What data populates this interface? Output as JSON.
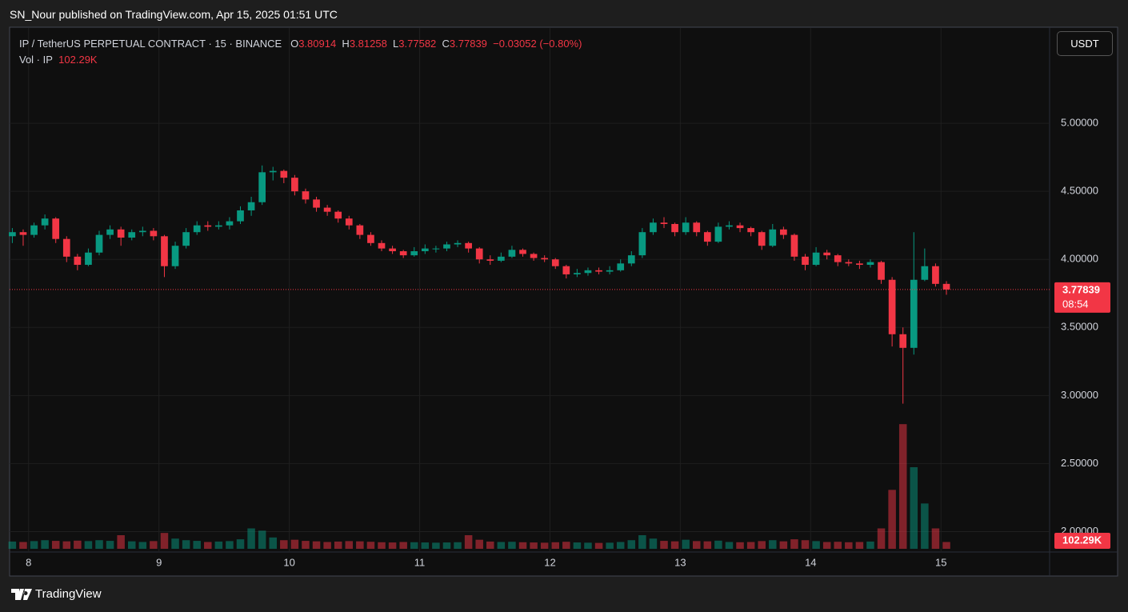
{
  "header": {
    "publisher": "SN_Nour published on TradingView.com, Apr 15, 2025 01:51 UTC",
    "brand": "TradingView"
  },
  "chart_data": {
    "type": "candlestick",
    "legend": {
      "symbol": "IP / TetherUS PERPETUAL CONTRACT · 15 · BINANCE",
      "open_label": "O",
      "open": 3.80914,
      "high_label": "H",
      "high": 3.81258,
      "low_label": "L",
      "low": 3.77582,
      "close_label": "C",
      "close": 3.77839,
      "change": "−0.03052 (−0.80%)",
      "volume_name": "Vol · IP",
      "volume": "102.29K"
    },
    "currency": "USDT",
    "countdown": "08:54",
    "up_color": "#089981",
    "down_color": "#f23645",
    "xlim": [
      -3.5,
      188
    ],
    "xticks": [
      {
        "value": 0,
        "label": "8"
      },
      {
        "value": 24,
        "label": "9"
      },
      {
        "value": 48,
        "label": "10"
      },
      {
        "value": 72,
        "label": "11"
      },
      {
        "value": 96,
        "label": "12"
      },
      {
        "value": 120,
        "label": "13"
      },
      {
        "value": 144,
        "label": "14"
      },
      {
        "value": 168,
        "label": "15"
      }
    ],
    "ylim": [
      1.85,
      5.7
    ],
    "yticks": [
      {
        "value": 2,
        "label": "2.00000"
      },
      {
        "value": 2.5,
        "label": "2.50000"
      },
      {
        "value": 3,
        "label": "3.00000"
      },
      {
        "value": 3.5,
        "label": "3.50000"
      },
      {
        "value": 4,
        "label": "4.00000"
      },
      {
        "value": 4.5,
        "label": "4.50000"
      },
      {
        "value": 5,
        "label": "5.00000"
      }
    ],
    "vlim": [
      0,
      6000000
    ],
    "grid": true,
    "x": [
      -3,
      -1,
      1,
      3,
      5,
      7,
      9,
      11,
      13,
      15,
      17,
      19,
      21,
      23,
      25,
      27,
      29,
      31,
      33,
      35,
      37,
      39,
      41,
      43,
      45,
      47,
      49,
      51,
      53,
      55,
      57,
      59,
      61,
      63,
      65,
      67,
      69,
      71,
      73,
      75,
      77,
      79,
      81,
      83,
      85,
      87,
      89,
      91,
      93,
      95,
      97,
      99,
      101,
      103,
      105,
      107,
      109,
      111,
      113,
      115,
      117,
      119,
      121,
      123,
      125,
      127,
      129,
      131,
      133,
      135,
      137,
      139,
      141,
      143,
      145,
      147,
      149,
      151,
      153,
      155,
      157,
      159,
      161,
      163,
      165,
      167,
      169
    ],
    "ohlc": [
      [
        4.17,
        4.23,
        4.12,
        4.2,
        320000
      ],
      [
        4.2,
        4.22,
        4.1,
        4.18,
        300000
      ],
      [
        4.18,
        4.27,
        4.16,
        4.25,
        340000
      ],
      [
        4.25,
        4.33,
        4.22,
        4.3,
        380000
      ],
      [
        4.3,
        4.31,
        4.12,
        4.15,
        350000
      ],
      [
        4.15,
        4.17,
        3.98,
        4.02,
        330000
      ],
      [
        4.02,
        4.04,
        3.92,
        3.96,
        360000
      ],
      [
        3.96,
        4.08,
        3.95,
        4.05,
        340000
      ],
      [
        4.05,
        4.21,
        4.03,
        4.18,
        380000
      ],
      [
        4.18,
        4.25,
        4.15,
        4.22,
        350000
      ],
      [
        4.22,
        4.24,
        4.1,
        4.16,
        600000
      ],
      [
        4.16,
        4.22,
        4.14,
        4.2,
        330000
      ],
      [
        4.2,
        4.24,
        4.17,
        4.21,
        300000
      ],
      [
        4.21,
        4.23,
        4.14,
        4.17,
        340000
      ],
      [
        4.17,
        4.18,
        3.87,
        3.95,
        700000
      ],
      [
        3.95,
        4.13,
        3.93,
        4.1,
        450000
      ],
      [
        4.1,
        4.23,
        4.08,
        4.2,
        380000
      ],
      [
        4.2,
        4.28,
        4.18,
        4.25,
        350000
      ],
      [
        4.25,
        4.28,
        4.21,
        4.24,
        300000
      ],
      [
        4.24,
        4.28,
        4.22,
        4.25,
        320000
      ],
      [
        4.25,
        4.31,
        4.22,
        4.28,
        340000
      ],
      [
        4.28,
        4.39,
        4.26,
        4.36,
        420000
      ],
      [
        4.36,
        4.46,
        4.32,
        4.42,
        900000
      ],
      [
        4.42,
        4.69,
        4.4,
        4.64,
        800000
      ],
      [
        4.64,
        4.68,
        4.58,
        4.65,
        500000
      ],
      [
        4.65,
        4.66,
        4.56,
        4.6,
        380000
      ],
      [
        4.6,
        4.62,
        4.47,
        4.5,
        400000
      ],
      [
        4.5,
        4.52,
        4.41,
        4.44,
        350000
      ],
      [
        4.44,
        4.46,
        4.35,
        4.38,
        330000
      ],
      [
        4.38,
        4.4,
        4.32,
        4.35,
        300000
      ],
      [
        4.35,
        4.36,
        4.27,
        4.3,
        320000
      ],
      [
        4.3,
        4.32,
        4.22,
        4.25,
        340000
      ],
      [
        4.25,
        4.26,
        4.15,
        4.18,
        330000
      ],
      [
        4.18,
        4.2,
        4.1,
        4.12,
        310000
      ],
      [
        4.12,
        4.14,
        4.06,
        4.08,
        290000
      ],
      [
        4.08,
        4.1,
        4.04,
        4.06,
        280000
      ],
      [
        4.06,
        4.07,
        4.01,
        4.03,
        300000
      ],
      [
        4.03,
        4.09,
        4.02,
        4.06,
        290000
      ],
      [
        4.06,
        4.11,
        4.04,
        4.08,
        280000
      ],
      [
        4.08,
        4.1,
        4.05,
        4.08,
        270000
      ],
      [
        4.08,
        4.13,
        4.06,
        4.11,
        280000
      ],
      [
        4.11,
        4.14,
        4.09,
        4.12,
        290000
      ],
      [
        4.12,
        4.13,
        4.05,
        4.08,
        600000
      ],
      [
        4.08,
        4.09,
        3.97,
        4.0,
        400000
      ],
      [
        4.0,
        4.03,
        3.96,
        3.99,
        320000
      ],
      [
        3.99,
        4.05,
        3.98,
        4.02,
        300000
      ],
      [
        4.02,
        4.1,
        4.01,
        4.07,
        310000
      ],
      [
        4.07,
        4.08,
        4.02,
        4.04,
        290000
      ],
      [
        4.04,
        4.05,
        3.99,
        4.01,
        280000
      ],
      [
        4.01,
        4.03,
        3.98,
        4.0,
        270000
      ],
      [
        4.0,
        4.01,
        3.93,
        3.95,
        290000
      ],
      [
        3.95,
        3.96,
        3.86,
        3.89,
        310000
      ],
      [
        3.89,
        3.93,
        3.87,
        3.9,
        280000
      ],
      [
        3.9,
        3.94,
        3.88,
        3.92,
        270000
      ],
      [
        3.92,
        3.94,
        3.89,
        3.91,
        260000
      ],
      [
        3.91,
        3.95,
        3.89,
        3.92,
        270000
      ],
      [
        3.92,
        4.0,
        3.91,
        3.97,
        300000
      ],
      [
        3.97,
        4.06,
        3.95,
        4.03,
        380000
      ],
      [
        4.03,
        4.23,
        4.01,
        4.2,
        600000
      ],
      [
        4.2,
        4.3,
        4.18,
        4.27,
        450000
      ],
      [
        4.27,
        4.31,
        4.23,
        4.26,
        350000
      ],
      [
        4.26,
        4.27,
        4.17,
        4.2,
        330000
      ],
      [
        4.2,
        4.31,
        4.18,
        4.27,
        400000
      ],
      [
        4.27,
        4.28,
        4.17,
        4.2,
        340000
      ],
      [
        4.2,
        4.21,
        4.1,
        4.13,
        330000
      ],
      [
        4.13,
        4.27,
        4.12,
        4.24,
        360000
      ],
      [
        4.24,
        4.28,
        4.22,
        4.25,
        300000
      ],
      [
        4.25,
        4.27,
        4.2,
        4.23,
        290000
      ],
      [
        4.23,
        4.24,
        4.17,
        4.2,
        300000
      ],
      [
        4.2,
        4.21,
        4.07,
        4.1,
        340000
      ],
      [
        4.1,
        4.26,
        4.09,
        4.22,
        380000
      ],
      [
        4.22,
        4.24,
        4.15,
        4.18,
        330000
      ],
      [
        4.18,
        4.19,
        3.99,
        4.02,
        420000
      ],
      [
        4.02,
        4.04,
        3.92,
        3.96,
        380000
      ],
      [
        3.96,
        4.09,
        3.95,
        4.05,
        340000
      ],
      [
        4.05,
        4.07,
        4.0,
        4.03,
        300000
      ],
      [
        4.03,
        4.04,
        3.95,
        3.98,
        310000
      ],
      [
        3.98,
        4.0,
        3.95,
        3.97,
        290000
      ],
      [
        3.97,
        3.99,
        3.93,
        3.96,
        300000
      ],
      [
        3.96,
        4.0,
        3.94,
        3.98,
        320000
      ],
      [
        3.98,
        3.99,
        3.82,
        3.85,
        900000
      ],
      [
        3.85,
        3.87,
        3.36,
        3.45,
        2600000
      ],
      [
        3.45,
        3.5,
        2.94,
        3.35,
        5500000
      ],
      [
        3.35,
        4.2,
        3.3,
        3.85,
        3600000
      ],
      [
        3.85,
        4.08,
        3.84,
        3.95,
        2000000
      ],
      [
        3.95,
        3.97,
        3.8,
        3.82,
        900000
      ],
      [
        3.82,
        3.84,
        3.74,
        3.77839,
        300000
      ]
    ]
  }
}
